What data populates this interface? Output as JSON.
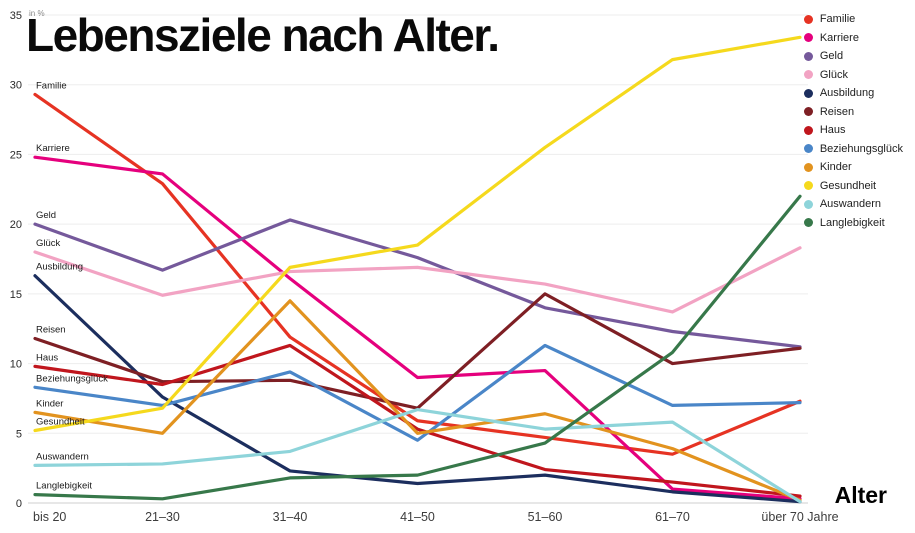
{
  "chart_data": {
    "type": "line",
    "title": "Lebensziele nach Alter.",
    "unit_label": "in %",
    "xlabel": "Alter",
    "ylabel": "",
    "categories": [
      "bis 20",
      "21–30",
      "31–40",
      "41–50",
      "51–60",
      "61–70",
      "über 70 Jahre"
    ],
    "ylim": [
      0,
      35
    ],
    "yticks": [
      0,
      5,
      10,
      15,
      20,
      25,
      30,
      35
    ],
    "grid": "horizontal-faint",
    "legend_position": "top-right",
    "series": [
      {
        "name": "Familie",
        "color": "#e63323",
        "values": [
          29.3,
          22.9,
          11.9,
          5.9,
          4.7,
          3.5,
          7.3
        ]
      },
      {
        "name": "Karriere",
        "color": "#e5007d",
        "values": [
          24.8,
          23.6,
          16.1,
          9.0,
          9.5,
          1.0,
          0.3
        ]
      },
      {
        "name": "Geld",
        "color": "#75599b",
        "values": [
          20.0,
          16.7,
          20.3,
          17.6,
          14.0,
          12.3,
          11.2
        ]
      },
      {
        "name": "Glück",
        "color": "#f2a3c3",
        "values": [
          18.0,
          14.9,
          16.6,
          16.9,
          15.7,
          13.7,
          18.3
        ]
      },
      {
        "name": "Ausbildung",
        "color": "#1c2e5e",
        "values": [
          16.3,
          7.6,
          2.3,
          1.4,
          2.0,
          0.8,
          0.1
        ]
      },
      {
        "name": "Reisen",
        "color": "#7e1f24",
        "values": [
          11.8,
          8.7,
          8.8,
          6.8,
          15.0,
          10.0,
          11.1
        ]
      },
      {
        "name": "Haus",
        "color": "#c0161d",
        "values": [
          9.8,
          8.5,
          11.3,
          5.3,
          2.4,
          1.5,
          0.5
        ]
      },
      {
        "name": "Beziehungsglück",
        "color": "#4a86c8",
        "values": [
          8.3,
          7.0,
          9.4,
          4.5,
          11.3,
          7.0,
          7.2
        ]
      },
      {
        "name": "Kinder",
        "color": "#e2931f",
        "values": [
          6.5,
          5.0,
          14.5,
          5.0,
          6.4,
          3.9,
          0.2
        ]
      },
      {
        "name": "Gesundheit",
        "color": "#f5d91d",
        "values": [
          5.2,
          6.8,
          16.9,
          18.5,
          25.5,
          31.8,
          33.4
        ]
      },
      {
        "name": "Auswandern",
        "color": "#8ed4da",
        "values": [
          2.7,
          2.8,
          3.7,
          6.7,
          5.3,
          5.8,
          0.1
        ]
      },
      {
        "name": "Langlebigkeit",
        "color": "#37784a",
        "values": [
          0.6,
          0.3,
          1.8,
          2.0,
          4.3,
          10.8,
          22.0
        ]
      }
    ]
  }
}
